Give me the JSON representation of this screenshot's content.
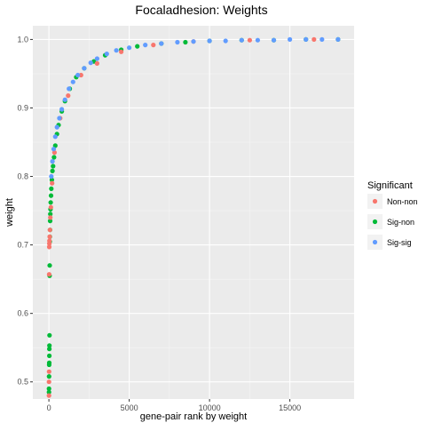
{
  "chart_data": {
    "type": "scatter",
    "title": "Focaladhesion: Weights",
    "xlabel": "gene-pair rank by weight",
    "ylabel": "weight",
    "xlim": [
      -1000,
      19000
    ],
    "ylim": [
      0.475,
      1.02
    ],
    "x_ticks": [
      0,
      5000,
      10000,
      15000
    ],
    "x_tick_labels": [
      "0",
      "5000",
      "10000",
      "15000"
    ],
    "y_ticks": [
      0.5,
      0.6,
      0.7,
      0.8,
      0.9,
      1.0
    ],
    "y_tick_labels": [
      "0.5",
      "0.6",
      "0.7",
      "0.8",
      "0.9",
      "1.0"
    ],
    "grid": true,
    "legend": {
      "title": "Significant",
      "position": "right",
      "entries": [
        {
          "label": "Non-non",
          "color": "#F8766D"
        },
        {
          "label": "Sig-non",
          "color": "#00BA38"
        },
        {
          "label": "Sig-sig",
          "color": "#619CFF"
        }
      ]
    },
    "series": [
      {
        "name": "Sig-non",
        "color": "#00BA38",
        "points": [
          [
            5,
            0.485
          ],
          [
            8,
            0.49
          ],
          [
            12,
            0.508
          ],
          [
            15,
            0.525
          ],
          [
            20,
            0.528
          ],
          [
            25,
            0.538
          ],
          [
            30,
            0.548
          ],
          [
            35,
            0.553
          ],
          [
            40,
            0.568
          ],
          [
            45,
            0.655
          ],
          [
            50,
            0.67
          ],
          [
            55,
            0.705
          ],
          [
            60,
            0.712
          ],
          [
            70,
            0.722
          ],
          [
            80,
            0.735
          ],
          [
            90,
            0.745
          ],
          [
            100,
            0.752
          ],
          [
            110,
            0.762
          ],
          [
            130,
            0.772
          ],
          [
            150,
            0.782
          ],
          [
            180,
            0.795
          ],
          [
            220,
            0.808
          ],
          [
            260,
            0.815
          ],
          [
            320,
            0.828
          ],
          [
            400,
            0.845
          ],
          [
            500,
            0.862
          ],
          [
            600,
            0.875
          ],
          [
            800,
            0.895
          ],
          [
            1000,
            0.91
          ],
          [
            1300,
            0.928
          ],
          [
            1700,
            0.945
          ],
          [
            2200,
            0.958
          ],
          [
            2800,
            0.968
          ],
          [
            3500,
            0.977
          ],
          [
            4500,
            0.985
          ],
          [
            5500,
            0.99
          ],
          [
            7000,
            0.994
          ],
          [
            8500,
            0.996
          ],
          [
            10000,
            0.998
          ],
          [
            12000,
            0.999
          ],
          [
            14000,
            0.999
          ],
          [
            16000,
            1.0
          ],
          [
            18000,
            1.0
          ]
        ]
      },
      {
        "name": "Non-non",
        "color": "#F8766D",
        "points": [
          [
            3,
            0.48
          ],
          [
            6,
            0.5
          ],
          [
            10,
            0.515
          ],
          [
            18,
            0.657
          ],
          [
            22,
            0.697
          ],
          [
            28,
            0.702
          ],
          [
            35,
            0.706
          ],
          [
            48,
            0.712
          ],
          [
            65,
            0.722
          ],
          [
            90,
            0.74
          ],
          [
            120,
            0.755
          ],
          [
            200,
            0.79
          ],
          [
            350,
            0.835
          ],
          [
            700,
            0.885
          ],
          [
            1200,
            0.918
          ],
          [
            2000,
            0.948
          ],
          [
            3000,
            0.965
          ],
          [
            4500,
            0.982
          ],
          [
            6500,
            0.992
          ],
          [
            9000,
            0.997
          ],
          [
            12500,
            0.999
          ],
          [
            16500,
            1.0
          ]
        ]
      },
      {
        "name": "Sig-sig",
        "color": "#619CFF",
        "points": [
          [
            150,
            0.8
          ],
          [
            220,
            0.822
          ],
          [
            300,
            0.84
          ],
          [
            400,
            0.858
          ],
          [
            500,
            0.872
          ],
          [
            650,
            0.885
          ],
          [
            800,
            0.898
          ],
          [
            1000,
            0.912
          ],
          [
            1250,
            0.928
          ],
          [
            1500,
            0.938
          ],
          [
            1800,
            0.948
          ],
          [
            2200,
            0.958
          ],
          [
            2600,
            0.966
          ],
          [
            3000,
            0.972
          ],
          [
            3600,
            0.979
          ],
          [
            4200,
            0.984
          ],
          [
            5000,
            0.988
          ],
          [
            6000,
            0.992
          ],
          [
            7000,
            0.994
          ],
          [
            8000,
            0.996
          ],
          [
            9000,
            0.997
          ],
          [
            10000,
            0.998
          ],
          [
            11000,
            0.998
          ],
          [
            12000,
            0.999
          ],
          [
            13000,
            0.999
          ],
          [
            14000,
            0.999
          ],
          [
            15000,
            1.0
          ],
          [
            16000,
            1.0
          ],
          [
            17000,
            1.0
          ],
          [
            18000,
            1.0
          ]
        ]
      }
    ]
  }
}
